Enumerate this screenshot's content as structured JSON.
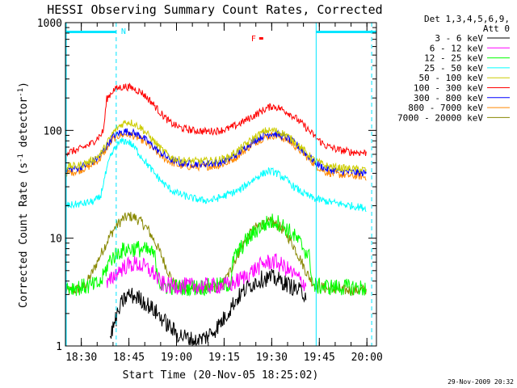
{
  "chart_data": {
    "type": "line",
    "title": "HESSI Observing Summary Count Rates, Corrected",
    "xlabel": "Start Time (20-Nov-05 18:25:02)",
    "ylabel": "Corrected Count Rate (s",
    "ylabel_sup1": "-1",
    "ylabel_mid": " detector",
    "ylabel_sup2": "-1",
    "ylabel_end": ")",
    "y_scale": "log",
    "ylim": [
      1,
      1000
    ],
    "x_ticks": [
      "18:30",
      "18:45",
      "19:00",
      "19:15",
      "19:30",
      "19:45",
      "20:00"
    ],
    "x_tick_minutes": [
      5,
      20,
      35,
      50,
      65,
      80,
      95
    ],
    "xlim_minutes": [
      0,
      98
    ],
    "y_ticks": [
      "1",
      "10",
      "100",
      "1000"
    ],
    "y_tick_values": [
      1,
      10,
      100,
      1000
    ],
    "legend_header": [
      "Det 1,3,4,5,6,9,",
      "Att 0"
    ],
    "legend_placement": "right",
    "footer": "29-Nov-2009 20:32",
    "annotations": {
      "night_label": "N",
      "flare_label": "F"
    },
    "series": [
      {
        "name": "3 - 6 keV",
        "color": "#000000",
        "points": [
          [
            14,
            1.2
          ],
          [
            16,
            1.8
          ],
          [
            18,
            2.6
          ],
          [
            20,
            3.0
          ],
          [
            23,
            2.8
          ],
          [
            26,
            2.4
          ],
          [
            29,
            2.0
          ],
          [
            32,
            1.6
          ],
          [
            35,
            1.3
          ],
          [
            38,
            1.2
          ],
          [
            41,
            1.1
          ],
          [
            44,
            1.2
          ],
          [
            47,
            1.4
          ],
          [
            50,
            1.8
          ],
          [
            53,
            2.5
          ],
          [
            56,
            3.2
          ],
          [
            59,
            3.8
          ],
          [
            62,
            4.2
          ],
          [
            65,
            4.3
          ],
          [
            68,
            4.0
          ],
          [
            71,
            3.6
          ],
          [
            74,
            3.2
          ],
          [
            76,
            3.0
          ]
        ]
      },
      {
        "name": "6 - 12 keV",
        "color": "#ff00ff",
        "points": [
          [
            13,
            3.6
          ],
          [
            16,
            4.8
          ],
          [
            19,
            5.5
          ],
          [
            22,
            5.8
          ],
          [
            25,
            5.4
          ],
          [
            28,
            4.7
          ],
          [
            30,
            3.8
          ],
          [
            33,
            3.6
          ],
          [
            40,
            3.6
          ],
          [
            47,
            3.6
          ],
          [
            52,
            3.7
          ],
          [
            56,
            4.3
          ],
          [
            60,
            5.2
          ],
          [
            63,
            5.9
          ],
          [
            66,
            6.1
          ],
          [
            69,
            5.4
          ],
          [
            72,
            4.6
          ],
          [
            75,
            3.9
          ],
          [
            76,
            3.6
          ]
        ]
      },
      {
        "name": "12 - 25 keV",
        "color": "#00ff00",
        "points": [
          [
            0,
            3.5
          ],
          [
            4,
            3.5
          ],
          [
            8,
            3.6
          ],
          [
            11,
            3.8
          ],
          [
            12,
            4.5
          ],
          [
            14,
            6.3
          ],
          [
            17,
            7.5
          ],
          [
            20,
            8.0
          ],
          [
            23,
            8.0
          ],
          [
            26,
            7.6
          ],
          [
            28,
            7.0
          ],
          [
            30,
            3.6
          ],
          [
            36,
            3.5
          ],
          [
            42,
            3.5
          ],
          [
            48,
            3.6
          ],
          [
            52,
            3.8
          ],
          [
            53,
            6.5
          ],
          [
            57,
            9.5
          ],
          [
            61,
            12.5
          ],
          [
            64,
            14.0
          ],
          [
            66,
            14.5
          ],
          [
            69,
            12.8
          ],
          [
            72,
            10.5
          ],
          [
            75,
            8.2
          ],
          [
            77,
            6.5
          ],
          [
            78,
            3.6
          ],
          [
            85,
            3.5
          ],
          [
            92,
            3.5
          ],
          [
            95,
            3.4
          ]
        ]
      },
      {
        "name": "25 - 50 keV",
        "color": "#00ffff",
        "points": [
          [
            0,
            20
          ],
          [
            3,
            20.5
          ],
          [
            6,
            21
          ],
          [
            9,
            22
          ],
          [
            11,
            24
          ],
          [
            12,
            33
          ],
          [
            14,
            55
          ],
          [
            16,
            72
          ],
          [
            18,
            80
          ],
          [
            20,
            78
          ],
          [
            22,
            68
          ],
          [
            25,
            52
          ],
          [
            28,
            40
          ],
          [
            31,
            32
          ],
          [
            34,
            27
          ],
          [
            37,
            25
          ],
          [
            40,
            23.5
          ],
          [
            43,
            22.5
          ],
          [
            46,
            22.5
          ],
          [
            49,
            24
          ],
          [
            52,
            26
          ],
          [
            55,
            28
          ],
          [
            58,
            33
          ],
          [
            61,
            38
          ],
          [
            64,
            42
          ],
          [
            66,
            41
          ],
          [
            69,
            36
          ],
          [
            72,
            30
          ],
          [
            75,
            26
          ],
          [
            78,
            23.5
          ],
          [
            82,
            22
          ],
          [
            86,
            21
          ],
          [
            90,
            20
          ],
          [
            95,
            19
          ]
        ]
      },
      {
        "name": "50 - 100 keV",
        "color": "#cccc00",
        "points": [
          [
            0,
            46
          ],
          [
            4,
            47
          ],
          [
            8,
            52
          ],
          [
            11,
            60
          ],
          [
            13,
            75
          ],
          [
            15,
            95
          ],
          [
            17,
            110
          ],
          [
            19,
            120
          ],
          [
            21,
            118
          ],
          [
            24,
            105
          ],
          [
            27,
            85
          ],
          [
            30,
            68
          ],
          [
            33,
            57
          ],
          [
            36,
            53
          ],
          [
            40,
            52
          ],
          [
            44,
            52
          ],
          [
            48,
            53
          ],
          [
            51,
            56
          ],
          [
            54,
            64
          ],
          [
            57,
            75
          ],
          [
            60,
            88
          ],
          [
            63,
            99
          ],
          [
            66,
            100
          ],
          [
            69,
            93
          ],
          [
            72,
            80
          ],
          [
            75,
            66
          ],
          [
            78,
            54
          ],
          [
            82,
            47
          ],
          [
            86,
            45
          ],
          [
            90,
            44
          ],
          [
            95,
            43
          ]
        ]
      },
      {
        "name": "100 - 300 keV",
        "color": "#ff0000",
        "points": [
          [
            0,
            62
          ],
          [
            4,
            66
          ],
          [
            8,
            75
          ],
          [
            11,
            90
          ],
          [
            12,
            100
          ],
          [
            13,
            195
          ],
          [
            15,
            235
          ],
          [
            17,
            250
          ],
          [
            19,
            255
          ],
          [
            21,
            248
          ],
          [
            24,
            225
          ],
          [
            27,
            185
          ],
          [
            30,
            145
          ],
          [
            33,
            118
          ],
          [
            36,
            106
          ],
          [
            40,
            100
          ],
          [
            44,
            98
          ],
          [
            48,
            99
          ],
          [
            51,
            103
          ],
          [
            54,
            112
          ],
          [
            57,
            125
          ],
          [
            60,
            140
          ],
          [
            63,
            158
          ],
          [
            65,
            168
          ],
          [
            67,
            163
          ],
          [
            70,
            148
          ],
          [
            73,
            127
          ],
          [
            76,
            105
          ],
          [
            79,
            85
          ],
          [
            82,
            72
          ],
          [
            86,
            66
          ],
          [
            90,
            63
          ],
          [
            95,
            62
          ]
        ]
      },
      {
        "name": "300 - 800 keV",
        "color": "#0000ff",
        "points": [
          [
            0,
            43
          ],
          [
            4,
            45
          ],
          [
            8,
            50
          ],
          [
            11,
            58
          ],
          [
            13,
            72
          ],
          [
            15,
            88
          ],
          [
            17,
            95
          ],
          [
            19,
            98
          ],
          [
            21,
            96
          ],
          [
            24,
            88
          ],
          [
            27,
            74
          ],
          [
            30,
            62
          ],
          [
            33,
            54
          ],
          [
            36,
            50
          ],
          [
            40,
            49
          ],
          [
            44,
            49
          ],
          [
            48,
            50
          ],
          [
            51,
            53
          ],
          [
            54,
            60
          ],
          [
            57,
            71
          ],
          [
            60,
            82
          ],
          [
            63,
            91
          ],
          [
            65,
            94
          ],
          [
            67,
            92
          ],
          [
            70,
            85
          ],
          [
            73,
            73
          ],
          [
            76,
            60
          ],
          [
            79,
            50
          ],
          [
            82,
            44
          ],
          [
            86,
            42
          ],
          [
            90,
            41
          ],
          [
            95,
            40
          ]
        ]
      },
      {
        "name": "800 - 7000 keV",
        "color": "#ff8800",
        "points": [
          [
            0,
            40
          ],
          [
            4,
            42
          ],
          [
            8,
            47
          ],
          [
            11,
            55
          ],
          [
            13,
            68
          ],
          [
            15,
            83
          ],
          [
            17,
            90
          ],
          [
            19,
            92
          ],
          [
            21,
            90
          ],
          [
            24,
            82
          ],
          [
            27,
            70
          ],
          [
            30,
            58
          ],
          [
            33,
            51
          ],
          [
            36,
            47
          ],
          [
            40,
            46
          ],
          [
            44,
            46
          ],
          [
            48,
            47
          ],
          [
            51,
            50
          ],
          [
            54,
            57
          ],
          [
            57,
            67
          ],
          [
            60,
            78
          ],
          [
            63,
            87
          ],
          [
            65,
            90
          ],
          [
            67,
            88
          ],
          [
            70,
            81
          ],
          [
            73,
            69
          ],
          [
            76,
            57
          ],
          [
            79,
            47
          ],
          [
            82,
            41
          ],
          [
            86,
            39
          ],
          [
            90,
            38
          ],
          [
            95,
            37
          ]
        ]
      },
      {
        "name": "7000 - 20000 keV",
        "color": "#888800",
        "points": [
          [
            0,
            3.2
          ],
          [
            3,
            3.3
          ],
          [
            6,
            3.6
          ],
          [
            8,
            4.5
          ],
          [
            10,
            6.0
          ],
          [
            12,
            8.0
          ],
          [
            14,
            10.5
          ],
          [
            16,
            13.0
          ],
          [
            18,
            15.0
          ],
          [
            20,
            16.0
          ],
          [
            22,
            15.5
          ],
          [
            24,
            14.0
          ],
          [
            26,
            12.0
          ],
          [
            28,
            9.5
          ],
          [
            30,
            7.2
          ],
          [
            32,
            5.2
          ],
          [
            34,
            3.9
          ],
          [
            36,
            3.5
          ],
          [
            42,
            3.4
          ],
          [
            48,
            3.5
          ],
          [
            50,
            3.9
          ],
          [
            52,
            5.0
          ],
          [
            54,
            6.8
          ],
          [
            56,
            8.8
          ],
          [
            58,
            10.8
          ],
          [
            60,
            12.5
          ],
          [
            62,
            13.5
          ],
          [
            64,
            14.0
          ],
          [
            66,
            13.6
          ],
          [
            68,
            12.4
          ],
          [
            70,
            10.5
          ],
          [
            72,
            8.4
          ],
          [
            74,
            6.4
          ],
          [
            76,
            4.8
          ],
          [
            78,
            3.8
          ],
          [
            82,
            3.4
          ],
          [
            88,
            3.3
          ],
          [
            95,
            3.3
          ]
        ]
      }
    ]
  }
}
